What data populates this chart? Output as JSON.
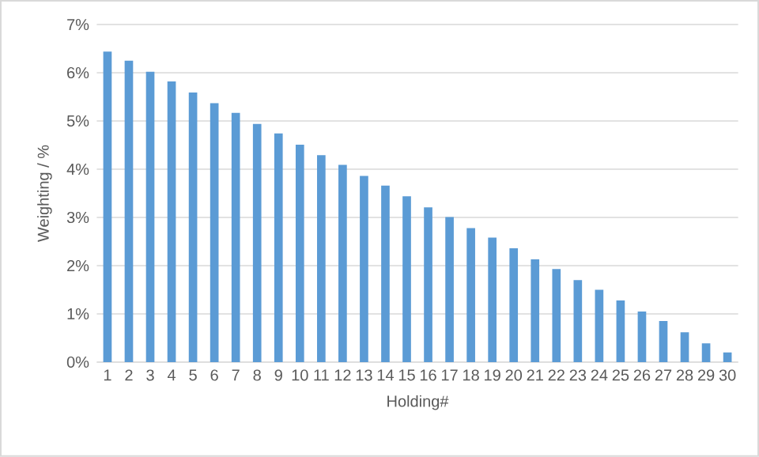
{
  "chart_data": {
    "type": "bar",
    "xlabel": "Holding#",
    "ylabel": "Weighting / %",
    "categories": [
      "1",
      "2",
      "3",
      "4",
      "5",
      "6",
      "7",
      "8",
      "9",
      "10",
      "11",
      "12",
      "13",
      "14",
      "15",
      "16",
      "17",
      "18",
      "19",
      "20",
      "21",
      "22",
      "23",
      "24",
      "25",
      "26",
      "27",
      "28",
      "29",
      "30"
    ],
    "values": [
      6.44,
      6.25,
      6.02,
      5.82,
      5.59,
      5.37,
      5.17,
      4.94,
      4.74,
      4.51,
      4.29,
      4.09,
      3.86,
      3.66,
      3.44,
      3.21,
      3.01,
      2.78,
      2.58,
      2.36,
      2.13,
      1.93,
      1.7,
      1.5,
      1.28,
      1.05,
      0.85,
      0.62,
      0.39,
      0.2
    ],
    "color": "#5b9bd5",
    "ylim": [
      0,
      7
    ],
    "yticks": [
      {
        "value": 0,
        "label": "0%"
      },
      {
        "value": 1,
        "label": "1%"
      },
      {
        "value": 2,
        "label": "2%"
      },
      {
        "value": 3,
        "label": "3%"
      },
      {
        "value": 4,
        "label": "4%"
      },
      {
        "value": 5,
        "label": "5%"
      },
      {
        "value": 6,
        "label": "6%"
      },
      {
        "value": 7,
        "label": "7%"
      }
    ],
    "grid": "y"
  }
}
